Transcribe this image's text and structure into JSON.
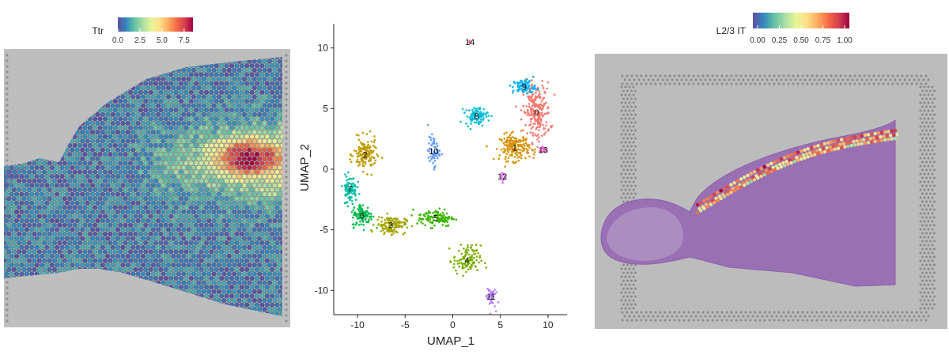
{
  "chart_data": [
    {
      "type": "heatmap",
      "legend": {
        "title": "Ttr",
        "ticks": [
          "0.0",
          "2.5",
          "5.0",
          "7.5"
        ],
        "tick_values": [
          0,
          2.5,
          5.0,
          7.5
        ],
        "range": [
          0,
          8.5
        ],
        "placement": "top-center"
      },
      "colormap": [
        "#5e4fa2",
        "#3288bd",
        "#66c2a5",
        "#abdda4",
        "#e6f598",
        "#fee08b",
        "#fdae61",
        "#f46d43",
        "#d53e4f",
        "#9e0142"
      ],
      "tissue_color": "#a9a9a9"
    },
    {
      "type": "scatter",
      "xlabel": "UMAP_1",
      "ylabel": "UMAP_2",
      "xlim": [
        -12.5,
        12
      ],
      "ylim": [
        -12,
        12
      ],
      "xticks": [
        -10,
        -5,
        0,
        5,
        10
      ],
      "yticks": [
        -10,
        -5,
        0,
        5,
        10
      ],
      "grid": false,
      "clusters": [
        {
          "label": "0",
          "center": [
            8.8,
            4.7
          ],
          "color": "#f8766d"
        },
        {
          "label": "1",
          "center": [
            6.5,
            1.8
          ],
          "color": "#d89000"
        },
        {
          "label": "2",
          "center": [
            -9.2,
            1.2
          ],
          "color": "#c09b00"
        },
        {
          "label": "3",
          "center": [
            -6.5,
            -4.6
          ],
          "color": "#a3a500"
        },
        {
          "label": "4",
          "center": [
            1.5,
            -7.5
          ],
          "color": "#7cae00"
        },
        {
          "label": "5",
          "center": [
            -1.8,
            -4.0
          ],
          "color": "#39b600"
        },
        {
          "label": "6",
          "center": [
            -9.5,
            -3.8
          ],
          "color": "#00bb4e"
        },
        {
          "label": "7",
          "center": [
            -10.8,
            -1.6
          ],
          "color": "#00bfa5"
        },
        {
          "label": "8",
          "center": [
            2.5,
            4.4
          ],
          "color": "#00bcd8"
        },
        {
          "label": "9",
          "center": [
            7.5,
            6.8
          ],
          "color": "#00b0f6"
        },
        {
          "label": "10",
          "center": [
            -2.0,
            1.5
          ],
          "color": "#619cff"
        },
        {
          "label": "11",
          "center": [
            4.0,
            -10.5
          ],
          "color": "#b983ff"
        },
        {
          "label": "12",
          "center": [
            5.2,
            -0.6
          ],
          "color": "#e76bf3"
        },
        {
          "label": "13",
          "center": [
            9.5,
            1.6
          ],
          "color": "#fd61d1"
        },
        {
          "label": "14",
          "center": [
            1.8,
            10.5
          ],
          "color": "#ff67a4"
        }
      ]
    },
    {
      "type": "heatmap",
      "legend": {
        "title": "L2/3 IT",
        "ticks": [
          "0.00",
          "0.25",
          "0.50",
          "0.75",
          "1.00"
        ],
        "tick_values": [
          0,
          0.25,
          0.5,
          0.75,
          1.0
        ],
        "range": [
          0,
          1.0
        ],
        "placement": "top-center"
      },
      "colormap": [
        "#5e4fa2",
        "#3288bd",
        "#66c2a5",
        "#abdda4",
        "#e6f598",
        "#fee08b",
        "#fdae61",
        "#f46d43",
        "#d53e4f",
        "#9e0142"
      ],
      "stain_color": "#8b5fa8"
    }
  ]
}
